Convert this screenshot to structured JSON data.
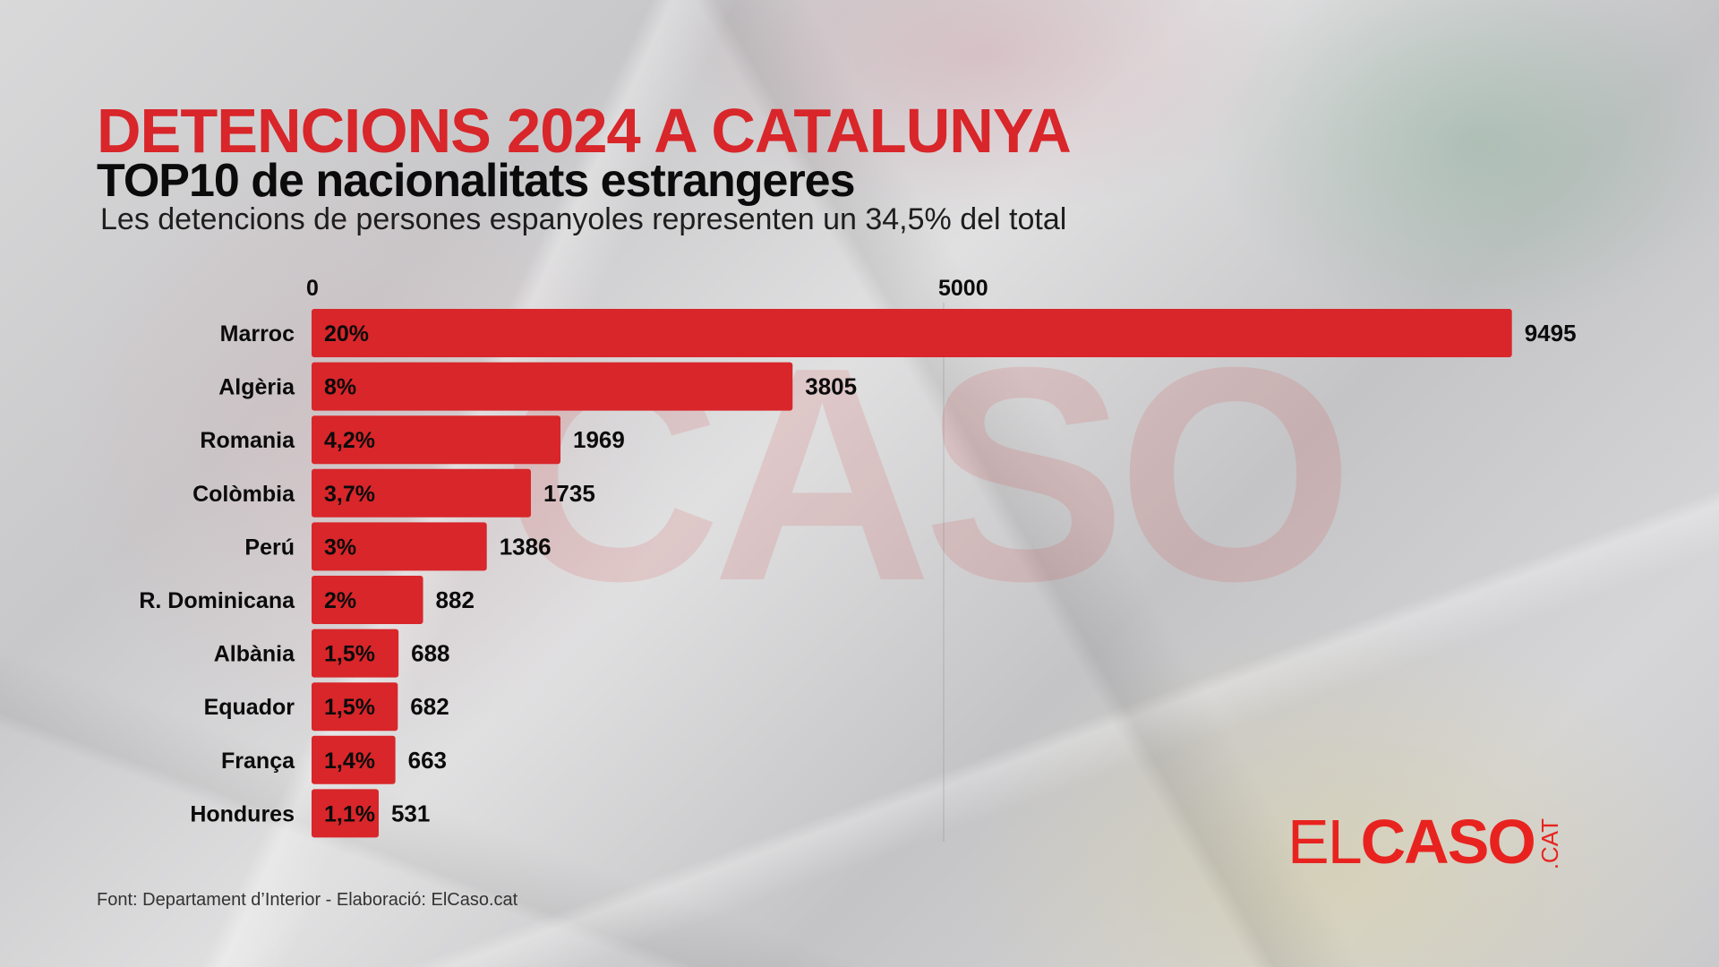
{
  "header": {
    "title": "DETENCIONS 2024 A CATALUNYA",
    "subtitle": "TOP10 de nacionalitats estrangeres",
    "description": "Les detencions de persones espanyoles representen un 34,5% del total"
  },
  "footer": {
    "source": "Font: Departament d’Interior - Elaboració: ElCaso.cat"
  },
  "logo": {
    "part1": "EL",
    "part2": "CASO",
    "part3": ".CAT",
    "watermark": "CASO"
  },
  "colors": {
    "accent": "#d8262a",
    "text": "#0b0b0b",
    "logo": "#e8231f"
  },
  "chart_data": {
    "type": "bar",
    "orientation": "horizontal",
    "title": "DETENCIONS 2024 A CATALUNYA",
    "subtitle": "TOP10 de nacionalitats estrangeres",
    "xlabel": "",
    "ylabel": "",
    "xlim": [
      0,
      9500
    ],
    "x_ticks": [
      0,
      5000
    ],
    "x_tick_labels": [
      "0",
      "5000"
    ],
    "grid": true,
    "legend": "none",
    "categories": [
      "Marroc",
      "Algèria",
      "Romania",
      "Colòmbia",
      "Perú",
      "R. Dominicana",
      "Albània",
      "Equador",
      "França",
      "Hondures"
    ],
    "values": [
      9495,
      3805,
      1969,
      1735,
      1386,
      882,
      688,
      682,
      663,
      531
    ],
    "percent_labels": [
      "20%",
      "8%",
      "4,2%",
      "3,7%",
      "3%",
      "2%",
      "1,5%",
      "1,5%",
      "1,4%",
      "1,1%"
    ],
    "value_labels": [
      "9495",
      "3805",
      "1969",
      "1735",
      "1386",
      "882",
      "688",
      "682",
      "663",
      "531"
    ]
  }
}
